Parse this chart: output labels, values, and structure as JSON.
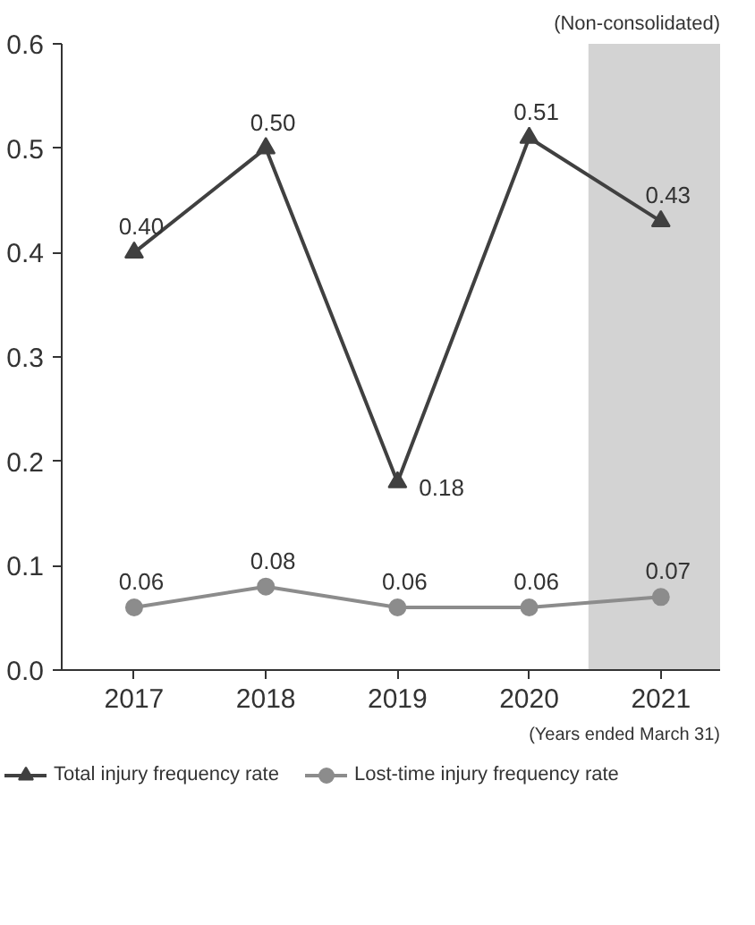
{
  "chart_data": {
    "type": "line",
    "x": [
      2017,
      2018,
      2019,
      2020,
      2021
    ],
    "series": [
      {
        "name": "Total injury frequency rate",
        "color": "#404040",
        "marker": "triangle",
        "values": [
          0.4,
          0.5,
          0.18,
          0.51,
          0.43
        ],
        "value_labels": [
          "0.40",
          "0.50",
          "0.18",
          "0.51",
          "0.43"
        ]
      },
      {
        "name": "Lost-time injury frequency rate",
        "color": "#8c8c8c",
        "marker": "circle",
        "values": [
          0.06,
          0.08,
          0.06,
          0.06,
          0.07
        ],
        "value_labels": [
          "0.06",
          "0.08",
          "0.06",
          "0.06",
          "0.07"
        ]
      }
    ],
    "xlim": [
      2016.45,
      2021.45
    ],
    "xticks": [
      2017,
      2018,
      2019,
      2020,
      2021
    ],
    "ylim": [
      0,
      0.6
    ],
    "yticks": [
      {
        "value": 0,
        "label": "0.0"
      },
      0.1,
      0.2,
      0.3,
      0.4,
      0.5,
      {
        "value": 0.6,
        "label": "0.6"
      }
    ],
    "bands": [
      {
        "axis": "x",
        "from": 2020.45,
        "to": 2021.45,
        "label": null,
        "color": "#d3d3d3"
      }
    ],
    "annotations": [
      "(Non-consolidated)",
      "(Years ended March 31)"
    ],
    "grid": false,
    "legend": "bottom",
    "line_style": "solid"
  }
}
